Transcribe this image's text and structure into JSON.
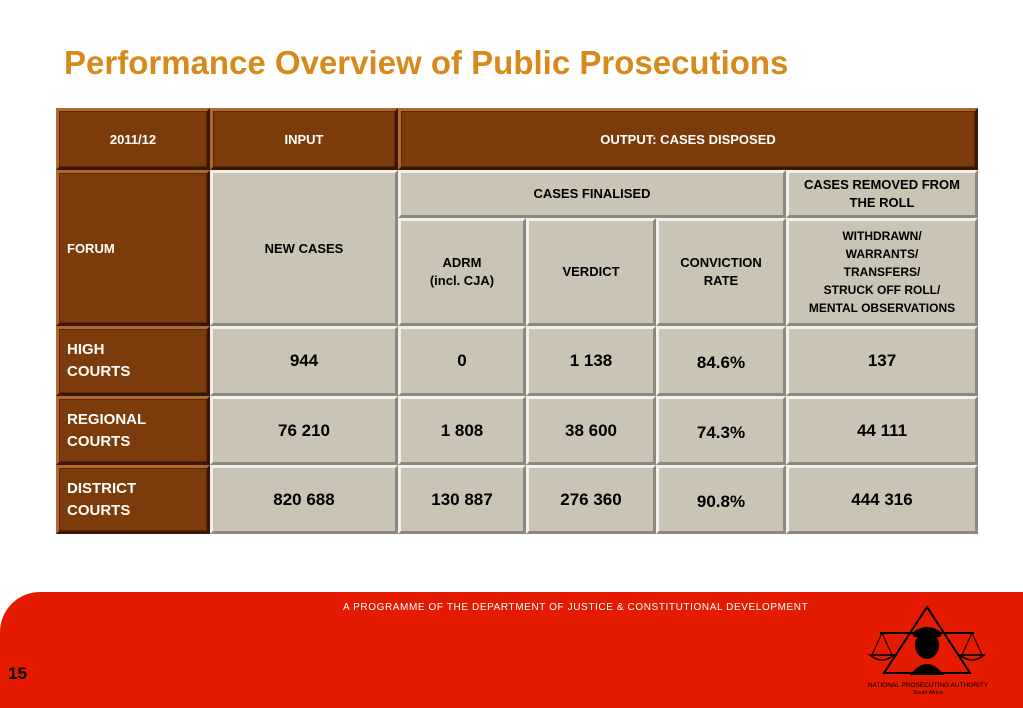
{
  "slide": {
    "title": "Performance Overview of Public Prosecutions",
    "page_number": "15"
  },
  "table": {
    "header": {
      "year": "2011/12",
      "input": "INPUT",
      "output": "OUTPUT: CASES DISPOSED"
    },
    "subheader": {
      "forum": "FORUM",
      "new_cases": "NEW CASES",
      "cases_finalised": "CASES FINALISED",
      "cases_removed": "CASES REMOVED FROM THE ROLL",
      "adrm": "ADRM\n(incl. CJA)",
      "verdict": "VERDICT",
      "conviction_rate": "CONVICTION\nRATE",
      "withdrawn": "WITHDRAWN/\nWARRANTS/\nTRANSFERS/\nSTRUCK OFF ROLL/\nMENTAL OBSERVATIONS"
    },
    "rows": [
      {
        "forum": "HIGH\nCOURTS",
        "new_cases": "944",
        "adrm": "0",
        "verdict": "1 138",
        "conviction_rate": "84.6%",
        "removed": "137"
      },
      {
        "forum": "REGIONAL\nCOURTS",
        "new_cases": "76 210",
        "adrm": "1 808",
        "verdict": "38 600",
        "conviction_rate": "74.3%",
        "removed": "44 111"
      },
      {
        "forum": "DISTRICT\nCOURTS",
        "new_cases": "820 688",
        "adrm": "130 887",
        "verdict": "276 360",
        "conviction_rate": "90.8%",
        "removed": "444 316"
      }
    ]
  },
  "footer": {
    "programme": "A PROGRAMME OF THE DEPARTMENT OF JUSTICE & CONSTITUTIONAL DEVELOPMENT",
    "logo_name": "NATIONAL PROSECUTING AUTHORITY",
    "logo_country": "South Africa"
  },
  "colors": {
    "title": "#d68a1c",
    "header_brown": "#7c3b0b",
    "cell_beige": "#c9c4b4",
    "footer_red": "#e41b00"
  }
}
